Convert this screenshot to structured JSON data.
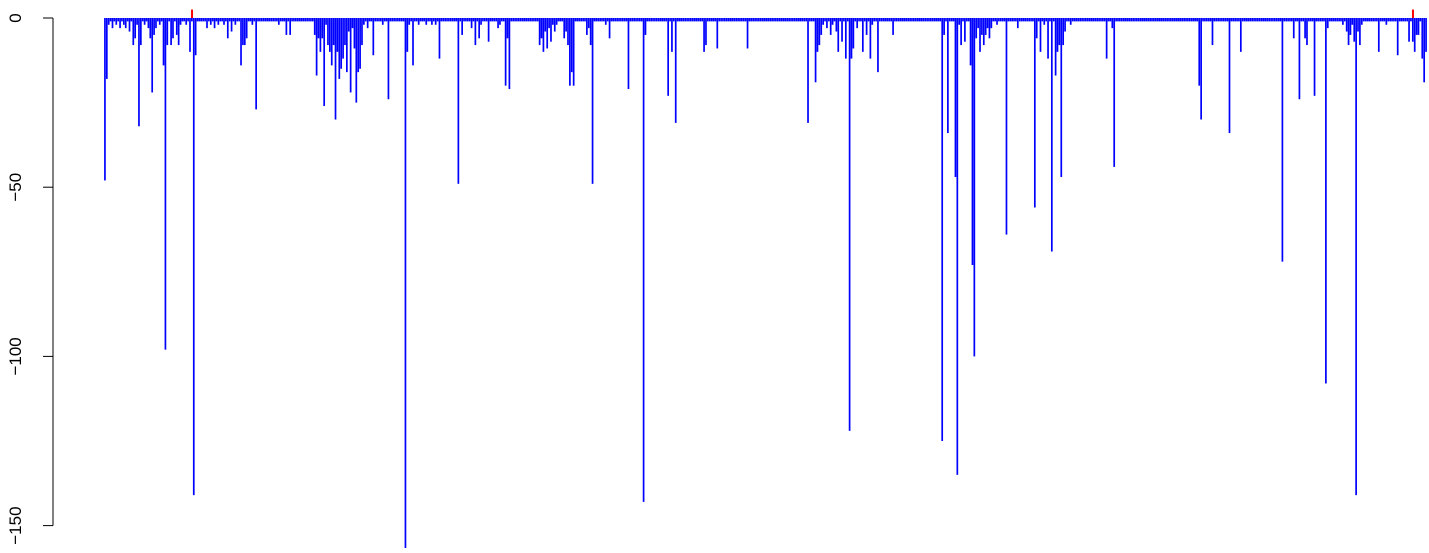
{
  "chart_data": {
    "type": "bar",
    "orientation": "vertical",
    "baseline": 0,
    "ylim": [
      -158,
      0
    ],
    "yticks": [
      0,
      -50,
      -100,
      -150
    ],
    "ytick_labels": [
      "0",
      "−50",
      "−100",
      "−150"
    ],
    "title": "",
    "xlabel": "",
    "ylabel": "",
    "grid": false,
    "legend": "none",
    "colors": {
      "bars": "#0000ff",
      "highlight": "#ff0000",
      "axis": "#000000"
    },
    "series": [
      {
        "color": "#0000ff",
        "values": [
          -48,
          -18,
          -2,
          -1,
          -3,
          -1,
          -2,
          -1,
          -3,
          -1,
          -2,
          -3,
          -1,
          -4,
          -1,
          -8,
          -6,
          -2,
          -32,
          -8,
          -1,
          -2,
          -1,
          -3,
          -6,
          -22,
          -5,
          -3,
          -1,
          -2,
          -1,
          -14,
          -98,
          -8,
          -1,
          -8,
          -6,
          -1,
          -5,
          -8,
          -2,
          -1,
          -1,
          -2,
          -1,
          -10,
          -1,
          -141,
          -11,
          -1,
          -1,
          -1,
          -1,
          -1,
          -3,
          -1,
          -2,
          -1,
          -3,
          -1,
          -2,
          -1,
          -1,
          -2,
          -1,
          -6,
          -1,
          -4,
          -1,
          -2,
          -1,
          -1,
          -14,
          -8,
          -8,
          -6,
          -1,
          -1,
          -2,
          -1,
          -27,
          -1,
          -1,
          -1,
          -1,
          -1,
          -1,
          -1,
          -1,
          -1,
          -1,
          -1,
          -2,
          -1,
          -1,
          -1,
          -5,
          -1,
          -5,
          -1,
          -1,
          -1,
          -1,
          -1,
          -1,
          -1,
          -1,
          -1,
          -1,
          -1,
          -1,
          -5,
          -17,
          -6,
          -10,
          -6,
          -26,
          -2,
          -8,
          -10,
          -14,
          -8,
          -30,
          -10,
          -18,
          -15,
          -12,
          -8,
          -16,
          -4,
          -22,
          -3,
          -9,
          -25,
          -16,
          -15,
          -8,
          -2,
          -1,
          -3,
          -1,
          -1,
          -11,
          -1,
          -1,
          -1,
          -1,
          -2,
          -1,
          -1,
          -24,
          -1,
          -1,
          -1,
          -1,
          -1,
          -1,
          -1,
          -1,
          -157,
          -10,
          -2,
          -1,
          -14,
          -1,
          -1,
          -2,
          -1,
          -1,
          -1,
          -2,
          -1,
          -1,
          -2,
          -1,
          -2,
          -1,
          -12,
          -1,
          -1,
          -1,
          -1,
          -1,
          -1,
          -1,
          -1,
          -1,
          -49,
          -1,
          -5,
          -1,
          -1,
          -1,
          -1,
          -3,
          -1,
          -8,
          -1,
          -6,
          -2,
          -1,
          -1,
          -1,
          -7,
          -1,
          -1,
          -1,
          -1,
          -3,
          -2,
          -1,
          -1,
          -20,
          -6,
          -21,
          -1,
          -1,
          -1,
          -1,
          -1,
          -1,
          -1,
          -1,
          -1,
          -1,
          -1,
          -1,
          -1,
          -1,
          -1,
          -8,
          -6,
          -10,
          -4,
          -9,
          -3,
          -7,
          -2,
          -4,
          -2,
          -1,
          -1,
          -1,
          -6,
          -4,
          -8,
          -20,
          -16,
          -20,
          -1,
          -1,
          -1,
          -1,
          -1,
          -1,
          -5,
          -3,
          -8,
          -49,
          -1,
          -1,
          -1,
          -1,
          -1,
          -1,
          -2,
          -1,
          -6,
          -1,
          -1,
          -1,
          -1,
          -1,
          -1,
          -1,
          -1,
          -1,
          -21,
          -1,
          -1,
          -1,
          -1,
          -1,
          -1,
          -1,
          -143,
          -5,
          -1,
          -1,
          -1,
          -1,
          -1,
          -1,
          -1,
          -1,
          -1,
          -1,
          -1,
          -23,
          -1,
          -10,
          -1,
          -31,
          -1,
          -1,
          -1,
          -1,
          -1,
          -1,
          -1,
          -1,
          -1,
          -1,
          -1,
          -1,
          -1,
          -1,
          -10,
          -8,
          -1,
          -1,
          -1,
          -1,
          -1,
          -9,
          -1,
          -1,
          -1,
          -1,
          -1,
          -1,
          -1,
          -1,
          -1,
          -1,
          -1,
          -1,
          -1,
          -1,
          -1,
          -9,
          -1,
          -1,
          -1,
          -1,
          -1,
          -1,
          -1,
          -1,
          -1,
          -1,
          -1,
          -1,
          -1,
          -1,
          -1,
          -1,
          -1,
          -1,
          -1,
          -1,
          -1,
          -1,
          -1,
          -1,
          -1,
          -1,
          -1,
          -1,
          -1,
          -1,
          -1,
          -31,
          -1,
          -1,
          -1,
          -19,
          -10,
          -8,
          -5,
          -2,
          -1,
          -3,
          -1,
          -5,
          -2,
          -1,
          -4,
          -10,
          -1,
          -7,
          -1,
          -12,
          -1,
          -122,
          -12,
          -9,
          -1,
          -3,
          -1,
          -1,
          -10,
          -1,
          -5,
          -1,
          -12,
          -2,
          -1,
          -1,
          -16,
          -1,
          -1,
          -1,
          -1,
          -1,
          -1,
          -1,
          -5,
          -1,
          -1,
          -1,
          -1,
          -1,
          -1,
          -1,
          -1,
          -1,
          -1,
          -1,
          -1,
          -1,
          -1,
          -1,
          -1,
          -1,
          -1,
          -1,
          -1,
          -1,
          -1,
          -1,
          -1,
          -1,
          -125,
          -5,
          -1,
          -34,
          -1,
          -1,
          -1,
          -47,
          -135,
          -2,
          -8,
          -1,
          -7,
          -1,
          -1,
          -14,
          -73,
          -100,
          -6,
          -3,
          -10,
          -5,
          -8,
          -5,
          -3,
          -6,
          -3,
          -1,
          -1,
          -2,
          -1,
          -1,
          -1,
          -1,
          -64,
          -1,
          -1,
          -1,
          -1,
          -1,
          -3,
          -1,
          -1,
          -1,
          -1,
          -1,
          -1,
          -1,
          -1,
          -56,
          -6,
          -1,
          -10,
          -1,
          -2,
          -1,
          -12,
          -1,
          -69,
          -1,
          -17,
          -10,
          -8,
          -47,
          -8,
          -4,
          -1,
          -1,
          -2,
          -1,
          -1,
          -1,
          -1,
          -1,
          -1,
          -1,
          -1,
          -1,
          -1,
          -1,
          -1,
          -1,
          -1,
          -1,
          -1,
          -1,
          -1,
          -12,
          -1,
          -1,
          -3,
          -44,
          -1,
          -1,
          -1,
          -1,
          -1,
          -1,
          -1,
          -1,
          -1,
          -1,
          -1,
          -1,
          -1,
          -1,
          -1,
          -1,
          -1,
          -1,
          -1,
          -1,
          -1,
          -1,
          -1,
          -1,
          -1,
          -1,
          -1,
          -1,
          -1,
          -1,
          -1,
          -1,
          -1,
          -1,
          -1,
          -1,
          -1,
          -1,
          -1,
          -1,
          -1,
          -1,
          -1,
          -1,
          -20,
          -30,
          -1,
          -1,
          -1,
          -1,
          -1,
          -8,
          -1,
          -1,
          -1,
          -1,
          -1,
          -1,
          -1,
          -1,
          -34,
          -1,
          -1,
          -1,
          -1,
          -1,
          -10,
          -1,
          -1,
          -1,
          -1,
          -1,
          -1,
          -1,
          -1,
          -1,
          -1,
          -1,
          -1,
          -1,
          -1,
          -1,
          -1,
          -1,
          -1,
          -1,
          -1,
          -1,
          -72,
          -1,
          -1,
          -1,
          -1,
          -1,
          -6,
          -1,
          -1,
          -24,
          -1,
          -1,
          -6,
          -8,
          -1,
          -1,
          -1,
          -23,
          -1,
          -1,
          -1,
          -1,
          -1,
          -108,
          -3,
          -1,
          -1,
          -1,
          -1,
          -1,
          -1,
          -1,
          -2,
          -1,
          -4,
          -8,
          -5,
          -2,
          -7,
          -141,
          -4,
          -8,
          -2,
          -1,
          -1,
          -1,
          -1,
          -1,
          -1,
          -1,
          -1,
          -10,
          -1,
          -1,
          -1,
          -2,
          -1,
          -1,
          -1,
          -1,
          -1,
          -11,
          -1,
          -1,
          -1,
          -1,
          -1,
          -7,
          -1,
          -7,
          -10,
          -5,
          -5,
          -1,
          -12,
          -19,
          -10
        ]
      },
      {
        "color": "#ff0000",
        "positions": [
          46,
          692
        ],
        "values": [
          2.5,
          2.5
        ]
      }
    ]
  }
}
